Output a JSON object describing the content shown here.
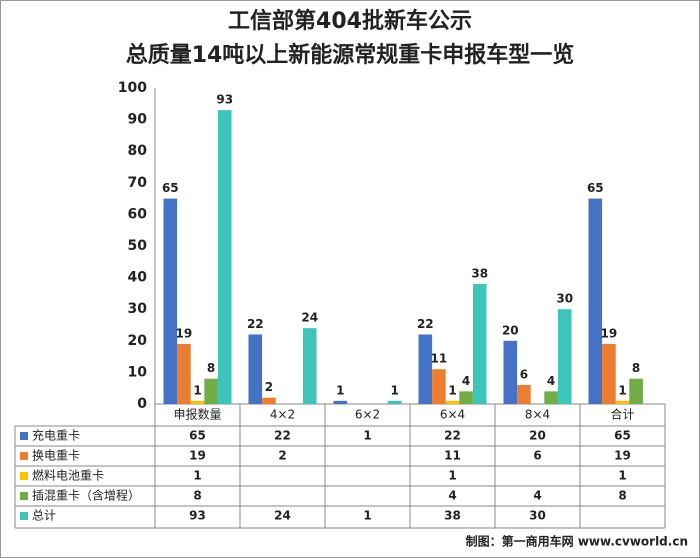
{
  "chart_data": {
    "type": "bar",
    "title": "工信部第404批新车公示",
    "subtitle": "总质量14吨以上新能源常规重卡申报车型一览",
    "categories": [
      "申报数量",
      "4×2",
      "6×2",
      "6×4",
      "8×4",
      "合计"
    ],
    "series": [
      {
        "name": "充电重卡",
        "color": "#4472c4",
        "values": [
          65,
          22,
          1,
          22,
          20,
          65
        ]
      },
      {
        "name": "换电重卡",
        "color": "#ed7d31",
        "values": [
          19,
          2,
          null,
          11,
          6,
          19
        ]
      },
      {
        "name": "燃料电池重卡",
        "color": "#ffc000",
        "values": [
          1,
          null,
          null,
          1,
          null,
          1
        ]
      },
      {
        "name": "插混重卡（含增程）",
        "color": "#70ad47",
        "values": [
          8,
          null,
          null,
          4,
          4,
          8
        ]
      },
      {
        "name": "总计",
        "color": "#3cc5b8",
        "values": [
          93,
          24,
          1,
          38,
          30,
          null
        ]
      }
    ],
    "ylim": [
      0,
      100
    ],
    "yticks": [
      0,
      10,
      20,
      30,
      40,
      50,
      60,
      70,
      80,
      90,
      100
    ],
    "grid": false,
    "source": "制图：第一商用车网 www.cvworld.cn"
  }
}
